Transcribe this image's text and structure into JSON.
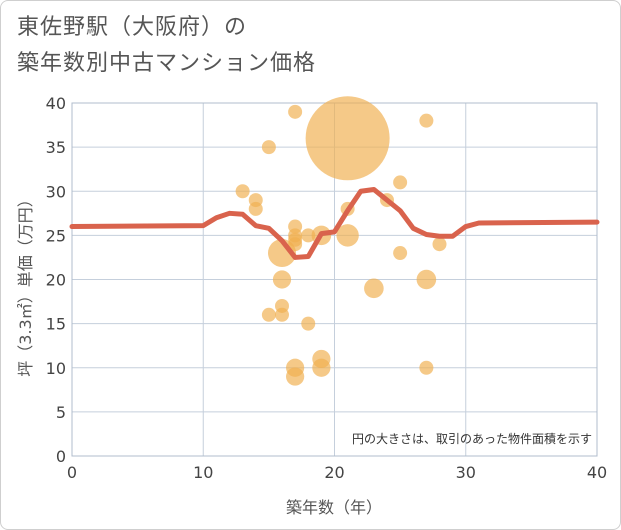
{
  "title_lines": [
    "東佐野駅（大阪府）の",
    "築年数別中古マンション価格"
  ],
  "chart_data": {
    "type": "scatter",
    "title": "東佐野駅（大阪府）の築年数別中古マンション価格",
    "xlabel": "築年数（年）",
    "ylabel": "坪（3.3㎡）単価（万円）",
    "xlim": [
      0,
      40
    ],
    "ylim": [
      0,
      40
    ],
    "xticks": [
      0,
      10,
      20,
      30,
      40
    ],
    "yticks": [
      0,
      5,
      10,
      15,
      20,
      25,
      30,
      35,
      40
    ],
    "grid": true,
    "annotation": "円の大きさは、取引のあった物件面積を示す",
    "bubble_color": "#f0b050",
    "line_color": "#d9634d",
    "bubbles": [
      {
        "x": 13,
        "y": 30,
        "size": 1
      },
      {
        "x": 14,
        "y": 29,
        "size": 1
      },
      {
        "x": 14,
        "y": 28,
        "size": 1
      },
      {
        "x": 15,
        "y": 35,
        "size": 1
      },
      {
        "x": 15,
        "y": 16,
        "size": 1
      },
      {
        "x": 16,
        "y": 23,
        "size": 2
      },
      {
        "x": 16,
        "y": 20,
        "size": 1.3
      },
      {
        "x": 16,
        "y": 17,
        "size": 1
      },
      {
        "x": 16,
        "y": 16,
        "size": 1
      },
      {
        "x": 17,
        "y": 39,
        "size": 1
      },
      {
        "x": 17,
        "y": 26,
        "size": 1
      },
      {
        "x": 17,
        "y": 25,
        "size": 1
      },
      {
        "x": 17,
        "y": 24.5,
        "size": 1
      },
      {
        "x": 17,
        "y": 24,
        "size": 1
      },
      {
        "x": 17,
        "y": 10,
        "size": 1.3
      },
      {
        "x": 17,
        "y": 9,
        "size": 1.3
      },
      {
        "x": 18,
        "y": 25,
        "size": 1
      },
      {
        "x": 18,
        "y": 15,
        "size": 1
      },
      {
        "x": 19,
        "y": 25,
        "size": 1.4
      },
      {
        "x": 19,
        "y": 11,
        "size": 1.3
      },
      {
        "x": 19,
        "y": 10,
        "size": 1.3
      },
      {
        "x": 21,
        "y": 36,
        "size": 6
      },
      {
        "x": 21,
        "y": 28,
        "size": 1
      },
      {
        "x": 21,
        "y": 25,
        "size": 1.6
      },
      {
        "x": 23,
        "y": 19,
        "size": 1.4
      },
      {
        "x": 24,
        "y": 29,
        "size": 1
      },
      {
        "x": 25,
        "y": 31,
        "size": 1
      },
      {
        "x": 25,
        "y": 23,
        "size": 1
      },
      {
        "x": 27,
        "y": 38,
        "size": 1
      },
      {
        "x": 27,
        "y": 20,
        "size": 1.4
      },
      {
        "x": 27,
        "y": 10,
        "size": 1
      },
      {
        "x": 28,
        "y": 24,
        "size": 1
      }
    ],
    "trend_line": {
      "x": [
        0,
        10,
        11,
        12,
        13,
        14,
        15,
        16,
        17,
        18,
        19,
        20,
        21,
        22,
        23,
        24,
        25,
        26,
        27,
        28,
        29,
        30,
        31,
        40
      ],
      "y": [
        26,
        26.1,
        27,
        27.5,
        27.4,
        26.1,
        25.8,
        24.4,
        22.5,
        22.6,
        25.2,
        25.4,
        27.8,
        30,
        30.2,
        29,
        27.8,
        25.8,
        25.1,
        24.9,
        24.9,
        26,
        26.4,
        26.5
      ]
    }
  }
}
